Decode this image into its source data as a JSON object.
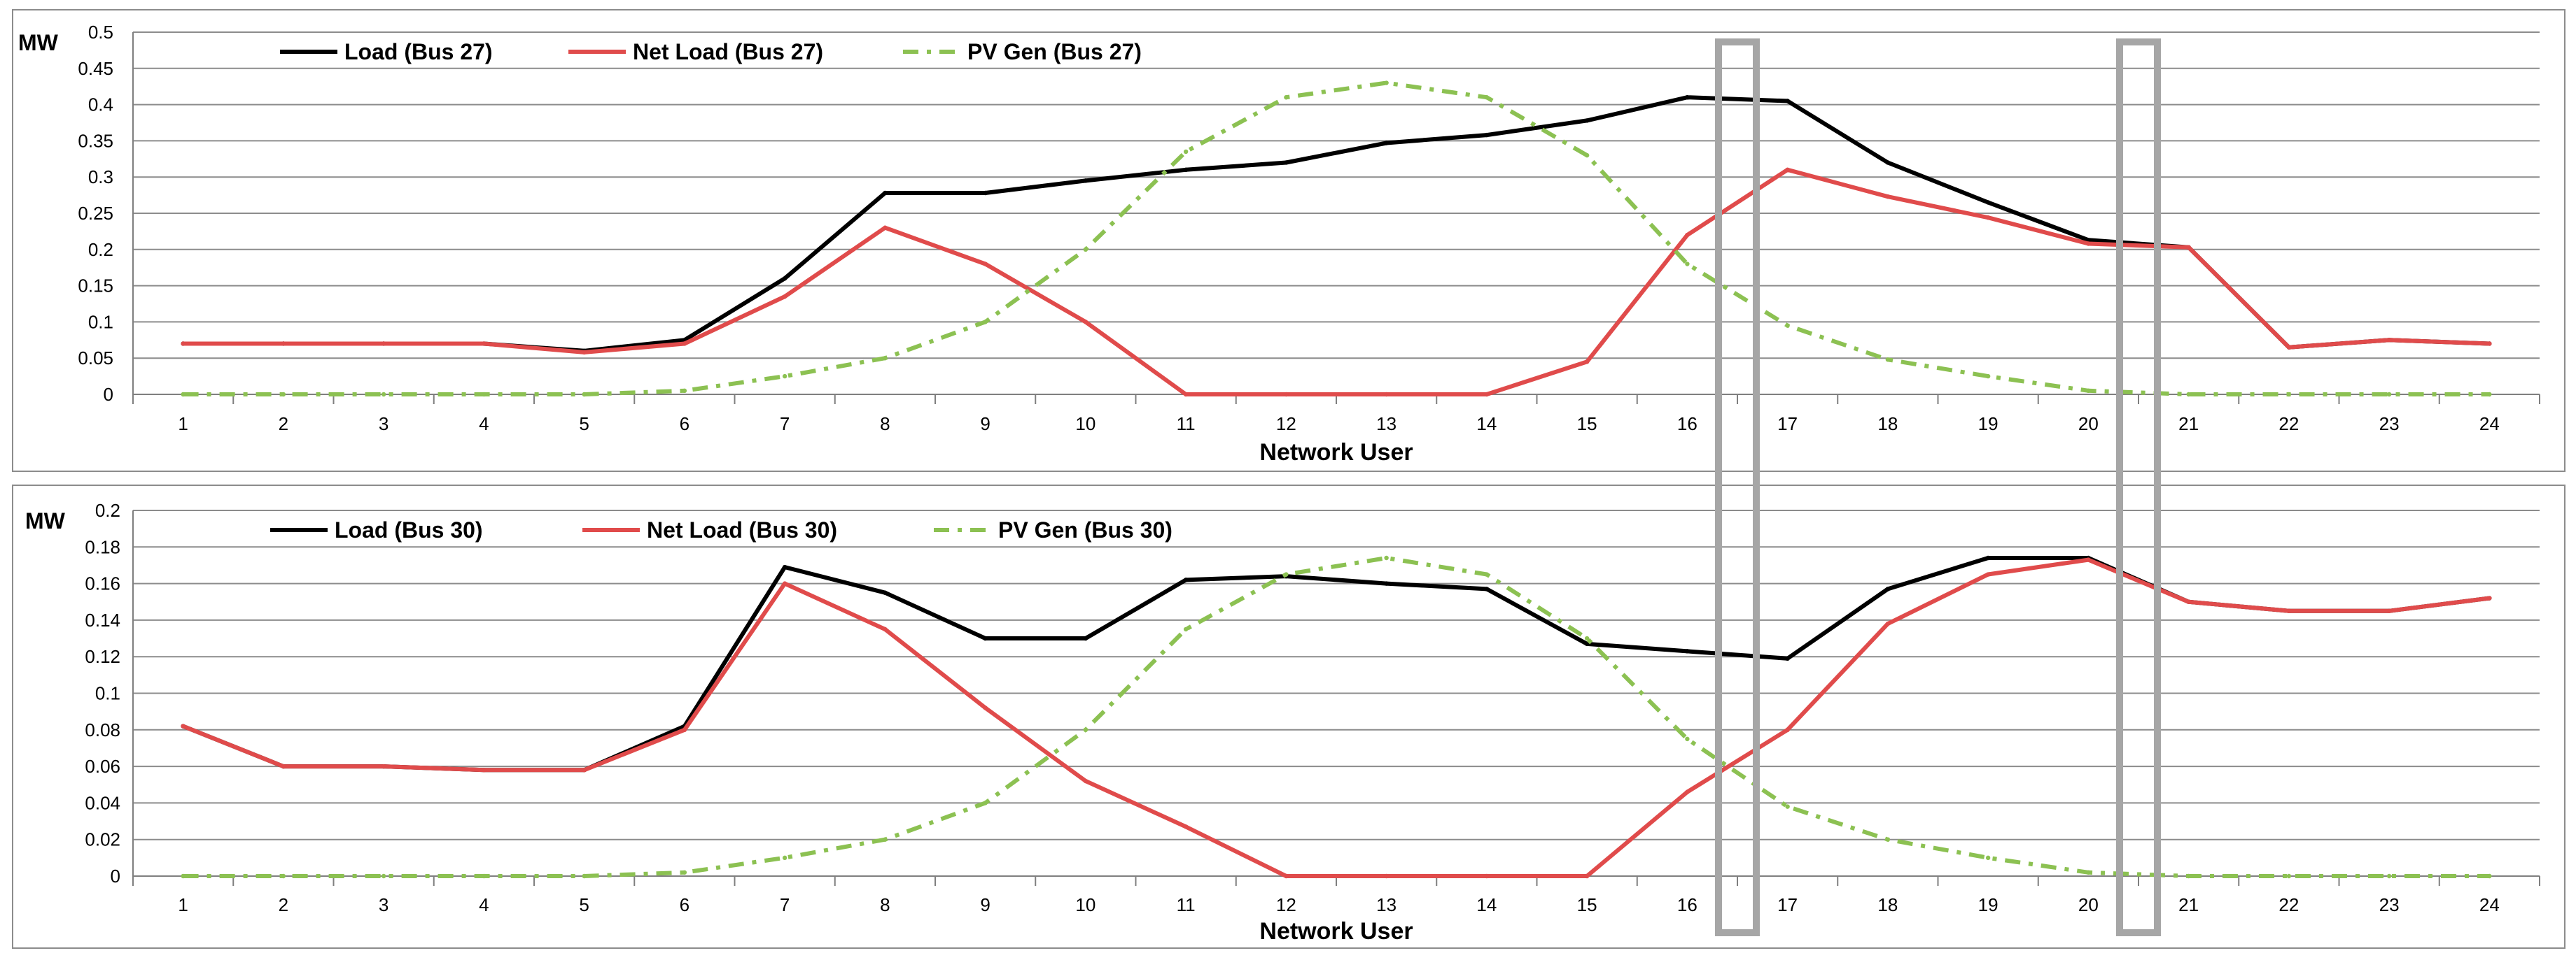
{
  "chart_data": [
    {
      "type": "line",
      "unit_label": "MW",
      "xlabel": "Network User",
      "categories": [
        "1",
        "2",
        "3",
        "4",
        "5",
        "6",
        "7",
        "8",
        "9",
        "10",
        "11",
        "12",
        "13",
        "14",
        "15",
        "16",
        "17",
        "18",
        "19",
        "20",
        "21",
        "22",
        "23",
        "24"
      ],
      "ylim": [
        0,
        0.5
      ],
      "yticks": [
        "0",
        "0.05",
        "0.1",
        "0.15",
        "0.2",
        "0.25",
        "0.3",
        "0.35",
        "0.4",
        "0.45",
        "0.5"
      ],
      "legend_position": "top-left",
      "series": [
        {
          "name": "Load (Bus 27)",
          "color": "#000000",
          "style": "solid",
          "values": [
            0.07,
            0.07,
            0.07,
            0.07,
            0.06,
            0.075,
            0.16,
            0.278,
            0.278,
            0.295,
            0.31,
            0.32,
            0.347,
            0.358,
            0.378,
            0.41,
            0.405,
            0.32,
            0.265,
            0.213,
            0.203,
            0.065,
            0.075,
            0.07
          ]
        },
        {
          "name": "Net Load (Bus 27)",
          "color": "#e04b4b",
          "style": "solid",
          "values": [
            0.07,
            0.07,
            0.07,
            0.07,
            0.058,
            0.07,
            0.135,
            0.23,
            0.18,
            0.1,
            0,
            0,
            0,
            0,
            0.045,
            0.22,
            0.31,
            0.273,
            0.244,
            0.208,
            0.203,
            0.065,
            0.075,
            0.07
          ]
        },
        {
          "name": "PV Gen (Bus 27)",
          "color": "#8cc152",
          "style": "dashdot",
          "values": [
            0,
            0,
            0,
            0,
            0,
            0.005,
            0.025,
            0.05,
            0.1,
            0.2,
            0.335,
            0.41,
            0.43,
            0.41,
            0.33,
            0.18,
            0.095,
            0.048,
            0.025,
            0.005,
            0,
            0,
            0,
            0
          ]
        }
      ]
    },
    {
      "type": "line",
      "unit_label": "MW",
      "xlabel": "Network User",
      "categories": [
        "1",
        "2",
        "3",
        "4",
        "5",
        "6",
        "7",
        "8",
        "9",
        "10",
        "11",
        "12",
        "13",
        "14",
        "15",
        "16",
        "17",
        "18",
        "19",
        "20",
        "21",
        "22",
        "23",
        "24"
      ],
      "ylim": [
        0,
        0.2
      ],
      "yticks": [
        "0",
        "0.02",
        "0.04",
        "0.06",
        "0.08",
        "0.1",
        "0.12",
        "0.14",
        "0.16",
        "0.18",
        "0.2"
      ],
      "legend_position": "top-left",
      "series": [
        {
          "name": "Load (Bus 30)",
          "color": "#000000",
          "style": "solid",
          "values": [
            0.082,
            0.06,
            0.06,
            0.058,
            0.058,
            0.082,
            0.169,
            0.155,
            0.13,
            0.13,
            0.162,
            0.164,
            0.16,
            0.157,
            0.127,
            0.123,
            0.119,
            0.157,
            0.174,
            0.174,
            0.15,
            0.145,
            0.145,
            0.152
          ]
        },
        {
          "name": "Net Load (Bus 30)",
          "color": "#e04b4b",
          "style": "solid",
          "values": [
            0.082,
            0.06,
            0.06,
            0.058,
            0.058,
            0.08,
            0.16,
            0.135,
            0.092,
            0.052,
            0.027,
            0,
            0,
            0,
            0,
            0.046,
            0.08,
            0.138,
            0.165,
            0.173,
            0.15,
            0.145,
            0.145,
            0.152
          ]
        },
        {
          "name": "PV Gen (Bus 30)",
          "color": "#8cc152",
          "style": "dashdot",
          "values": [
            0,
            0,
            0,
            0,
            0,
            0.002,
            0.01,
            0.02,
            0.04,
            0.08,
            0.135,
            0.165,
            0.174,
            0.165,
            0.13,
            0.075,
            0.038,
            0.02,
            0.01,
            0.002,
            0,
            0,
            0,
            0
          ]
        }
      ]
    }
  ],
  "highlights": [
    {
      "from_category": "16",
      "to_category": "17"
    },
    {
      "from_category": "20",
      "to_category": "21"
    }
  ]
}
